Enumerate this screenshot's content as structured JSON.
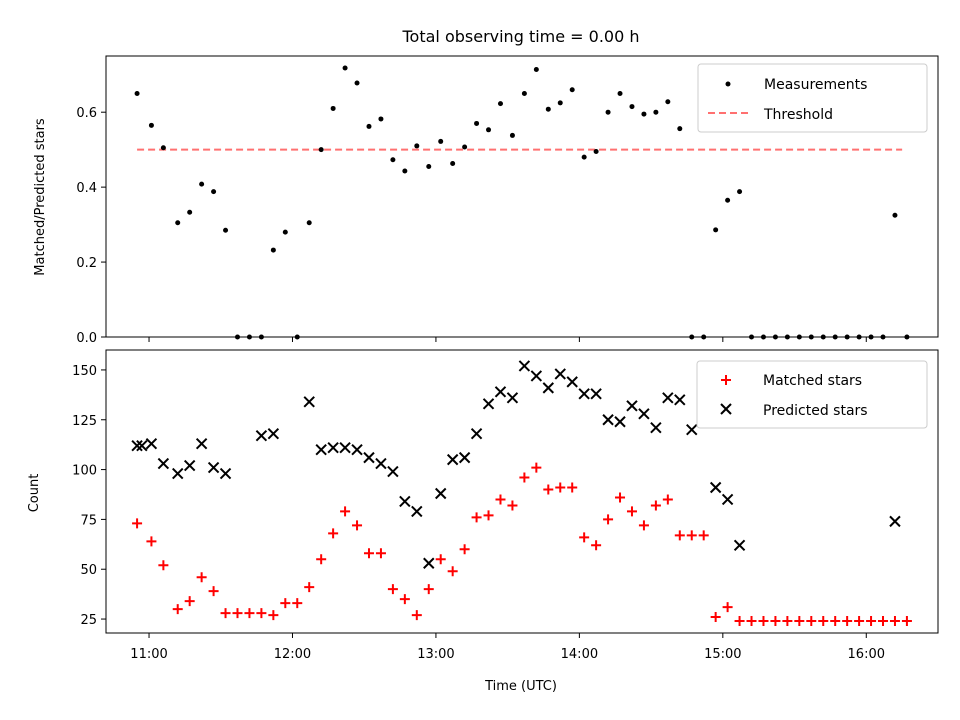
{
  "chart_data": {
    "title": "Total observing time = 0.00 h",
    "xlabel": "Time (UTC)",
    "x_ticks": [
      "11:00",
      "12:00",
      "13:00",
      "14:00",
      "15:00",
      "16:00"
    ],
    "xlim": [
      "10:42",
      "16:30"
    ],
    "panels": [
      {
        "type": "scatter",
        "ylabel": "Matched/Predicted stars",
        "ylim": [
          0,
          0.75
        ],
        "y_ticks": [
          "0.0",
          "0.2",
          "0.4",
          "0.6"
        ],
        "legend_position": "top-right",
        "threshold": {
          "name": "Threshold",
          "value": 0.5,
          "x_start": "10:55",
          "x_end": "16:15",
          "color": "#ff7070",
          "style": "dashed"
        },
        "series": [
          {
            "name": "Measurements",
            "marker": "dot",
            "color": "#000000",
            "x": [
              "10:55",
              "11:01",
              "11:06",
              "11:12",
              "11:17",
              "11:22",
              "11:27",
              "11:32",
              "11:37",
              "11:42",
              "11:47",
              "11:52",
              "11:57",
              "12:02",
              "12:07",
              "12:12",
              "12:17",
              "12:22",
              "12:27",
              "12:32",
              "12:37",
              "12:42",
              "12:47",
              "12:52",
              "12:57",
              "13:02",
              "13:07",
              "13:12",
              "13:17",
              "13:22",
              "13:27",
              "13:32",
              "13:37",
              "13:42",
              "13:47",
              "13:52",
              "13:57",
              "14:02",
              "14:07",
              "14:12",
              "14:17",
              "14:22",
              "14:27",
              "14:32",
              "14:37",
              "14:42",
              "14:47",
              "14:52",
              "14:57",
              "15:02",
              "15:07",
              "15:12",
              "15:17",
              "15:22",
              "15:27",
              "15:32",
              "15:37",
              "15:42",
              "15:47",
              "15:52",
              "15:57",
              "16:02",
              "16:07",
              "16:12",
              "16:17"
            ],
            "y": [
              0.65,
              0.565,
              0.505,
              0.305,
              0.333,
              0.408,
              0.388,
              0.285,
              0.0,
              0.0,
              0.0,
              0.232,
              0.28,
              0.0,
              0.305,
              0.5,
              0.61,
              0.718,
              0.678,
              0.562,
              0.582,
              0.473,
              0.443,
              0.51,
              0.455,
              0.522,
              0.463,
              0.507,
              0.57,
              0.553,
              0.623,
              0.538,
              0.65,
              0.714,
              0.608,
              0.625,
              0.66,
              0.48,
              0.495,
              0.6,
              0.65,
              0.615,
              0.595,
              0.6,
              0.628,
              0.556,
              0.0,
              0.0,
              0.286,
              0.365,
              0.388,
              0.0,
              0.0,
              0.0,
              0.0,
              0.0,
              0.0,
              0.0,
              0.0,
              0.0,
              0.0,
              0.0,
              0.0,
              0.325,
              0.0
            ]
          }
        ]
      },
      {
        "type": "scatter",
        "ylabel": "Count",
        "ylim": [
          18,
          160
        ],
        "y_ticks": [
          "25",
          "50",
          "75",
          "100",
          "125",
          "150"
        ],
        "legend_position": "top-right",
        "series": [
          {
            "name": "Matched stars",
            "marker": "plus",
            "color": "#ff0000",
            "x": [
              "10:55",
              "11:01",
              "11:06",
              "11:12",
              "11:17",
              "11:22",
              "11:27",
              "11:32",
              "11:37",
              "11:42",
              "11:47",
              "11:52",
              "11:57",
              "12:02",
              "12:07",
              "12:12",
              "12:17",
              "12:22",
              "12:27",
              "12:32",
              "12:37",
              "12:42",
              "12:47",
              "12:52",
              "12:57",
              "13:02",
              "13:07",
              "13:12",
              "13:17",
              "13:22",
              "13:27",
              "13:32",
              "13:37",
              "13:42",
              "13:47",
              "13:52",
              "13:57",
              "14:02",
              "14:07",
              "14:12",
              "14:17",
              "14:22",
              "14:27",
              "14:32",
              "14:37",
              "14:42",
              "14:47",
              "14:52",
              "14:57",
              "15:02",
              "15:07",
              "15:12",
              "15:17",
              "15:22",
              "15:27",
              "15:32",
              "15:37",
              "15:42",
              "15:47",
              "15:52",
              "15:57",
              "16:02",
              "16:07",
              "16:12",
              "16:17"
            ],
            "y": [
              73,
              64,
              52,
              30,
              34,
              46,
              39,
              28,
              28,
              28,
              28,
              27,
              33,
              33,
              41,
              55,
              68,
              79,
              72,
              58,
              58,
              40,
              35,
              27,
              40,
              55,
              49,
              60,
              76,
              77,
              85,
              82,
              96,
              101,
              90,
              91,
              91,
              66,
              62,
              75,
              86,
              79,
              72,
              82,
              85,
              67,
              67,
              67,
              26,
              31,
              24,
              24,
              24,
              24,
              24,
              24,
              24,
              24,
              24,
              24,
              24,
              24,
              24,
              24,
              24
            ]
          },
          {
            "name": "Predicted stars",
            "marker": "x",
            "color": "#000000",
            "x": [
              "10:55",
              "10:57",
              "11:01",
              "11:06",
              "11:12",
              "11:17",
              "11:22",
              "11:27",
              "11:32",
              "11:47",
              "11:52",
              "12:07",
              "12:12",
              "12:17",
              "12:22",
              "12:27",
              "12:32",
              "12:37",
              "12:42",
              "12:47",
              "12:52",
              "12:57",
              "13:02",
              "13:07",
              "13:12",
              "13:17",
              "13:22",
              "13:27",
              "13:32",
              "13:37",
              "13:42",
              "13:47",
              "13:52",
              "13:57",
              "14:02",
              "14:07",
              "14:12",
              "14:17",
              "14:22",
              "14:27",
              "14:32",
              "14:37",
              "14:42",
              "14:47",
              "14:52",
              "14:57",
              "15:02",
              "15:07",
              "16:12"
            ],
            "y": [
              112,
              112,
              113,
              103,
              98,
              102,
              113,
              101,
              98,
              117,
              118,
              134,
              110,
              111,
              111,
              110,
              106,
              103,
              99,
              84,
              79,
              53,
              88,
              105,
              106,
              118,
              133,
              139,
              136,
              152,
              147,
              141,
              148,
              144,
              138,
              138,
              125,
              124,
              132,
              128,
              121,
              136,
              135,
              120,
              null,
              91,
              85,
              62,
              74
            ]
          }
        ]
      }
    ]
  }
}
